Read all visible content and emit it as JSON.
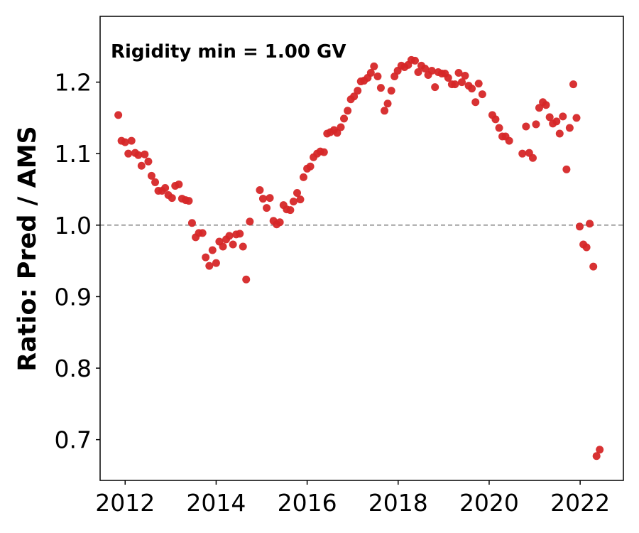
{
  "chart_data": {
    "type": "scatter",
    "title": "",
    "xlabel": "",
    "ylabel": "Ratio: Pred / AMS",
    "annotation": "Rigidity min = 1.00 GV",
    "xlim": [
      2011.45,
      2022.95
    ],
    "ylim": [
      0.643,
      1.292
    ],
    "xticks": [
      2012,
      2014,
      2016,
      2018,
      2020,
      2022
    ],
    "xtick_labels": [
      "2012",
      "2014",
      "2016",
      "2018",
      "2020",
      "2022"
    ],
    "yticks": [
      0.7,
      0.8,
      0.9,
      1.0,
      1.1,
      1.2
    ],
    "ytick_labels": [
      "0.7",
      "0.8",
      "0.9",
      "1.0",
      "1.1",
      "1.2"
    ],
    "reference_line": {
      "y": 1.0,
      "style": "dashed",
      "color": "#808080"
    },
    "grid": false,
    "marker_color": "#d62728",
    "points": [
      [
        2011.85,
        1.154
      ],
      [
        2011.92,
        1.118
      ],
      [
        2012.0,
        1.116
      ],
      [
        2012.07,
        1.1
      ],
      [
        2012.14,
        1.118
      ],
      [
        2012.22,
        1.101
      ],
      [
        2012.29,
        1.098
      ],
      [
        2012.36,
        1.083
      ],
      [
        2012.43,
        1.099
      ],
      [
        2012.51,
        1.089
      ],
      [
        2012.58,
        1.069
      ],
      [
        2012.66,
        1.06
      ],
      [
        2012.73,
        1.048
      ],
      [
        2012.81,
        1.048
      ],
      [
        2012.88,
        1.052
      ],
      [
        2012.95,
        1.042
      ],
      [
        2013.03,
        1.038
      ],
      [
        2013.1,
        1.055
      ],
      [
        2013.18,
        1.057
      ],
      [
        2013.25,
        1.037
      ],
      [
        2013.33,
        1.035
      ],
      [
        2013.4,
        1.034
      ],
      [
        2013.47,
        1.003
      ],
      [
        2013.55,
        0.983
      ],
      [
        2013.62,
        0.989
      ],
      [
        2013.7,
        0.989
      ],
      [
        2013.77,
        0.955
      ],
      [
        2013.85,
        0.943
      ],
      [
        2013.92,
        0.965
      ],
      [
        2014.0,
        0.947
      ],
      [
        2014.07,
        0.977
      ],
      [
        2014.15,
        0.97
      ],
      [
        2014.22,
        0.98
      ],
      [
        2014.29,
        0.985
      ],
      [
        2014.37,
        0.973
      ],
      [
        2014.44,
        0.987
      ],
      [
        2014.52,
        0.988
      ],
      [
        2014.59,
        0.97
      ],
      [
        2014.66,
        0.924
      ],
      [
        2014.74,
        1.005
      ],
      [
        2014.96,
        1.049
      ],
      [
        2015.03,
        1.037
      ],
      [
        2015.11,
        1.024
      ],
      [
        2015.18,
        1.038
      ],
      [
        2015.26,
        1.006
      ],
      [
        2015.33,
        1.001
      ],
      [
        2015.4,
        1.004
      ],
      [
        2015.48,
        1.028
      ],
      [
        2015.55,
        1.022
      ],
      [
        2015.63,
        1.021
      ],
      [
        2015.7,
        1.033
      ],
      [
        2015.78,
        1.045
      ],
      [
        2015.85,
        1.036
      ],
      [
        2015.92,
        1.067
      ],
      [
        2016.0,
        1.079
      ],
      [
        2016.07,
        1.082
      ],
      [
        2016.14,
        1.095
      ],
      [
        2016.22,
        1.1
      ],
      [
        2016.29,
        1.103
      ],
      [
        2016.37,
        1.102
      ],
      [
        2016.44,
        1.128
      ],
      [
        2016.51,
        1.13
      ],
      [
        2016.59,
        1.133
      ],
      [
        2016.66,
        1.129
      ],
      [
        2016.74,
        1.137
      ],
      [
        2016.81,
        1.149
      ],
      [
        2016.89,
        1.16
      ],
      [
        2016.96,
        1.176
      ],
      [
        2017.03,
        1.18
      ],
      [
        2017.11,
        1.188
      ],
      [
        2017.18,
        1.201
      ],
      [
        2017.25,
        1.202
      ],
      [
        2017.33,
        1.206
      ],
      [
        2017.4,
        1.213
      ],
      [
        2017.47,
        1.222
      ],
      [
        2017.55,
        1.208
      ],
      [
        2017.62,
        1.192
      ],
      [
        2017.7,
        1.16
      ],
      [
        2017.77,
        1.17
      ],
      [
        2017.85,
        1.188
      ],
      [
        2017.92,
        1.208
      ],
      [
        2017.99,
        1.216
      ],
      [
        2018.07,
        1.223
      ],
      [
        2018.14,
        1.221
      ],
      [
        2018.22,
        1.224
      ],
      [
        2018.29,
        1.231
      ],
      [
        2018.37,
        1.23
      ],
      [
        2018.44,
        1.214
      ],
      [
        2018.51,
        1.223
      ],
      [
        2018.59,
        1.219
      ],
      [
        2018.66,
        1.21
      ],
      [
        2018.74,
        1.216
      ],
      [
        2018.81,
        1.193
      ],
      [
        2018.88,
        1.214
      ],
      [
        2018.96,
        1.212
      ],
      [
        2019.03,
        1.212
      ],
      [
        2019.1,
        1.206
      ],
      [
        2019.18,
        1.197
      ],
      [
        2019.25,
        1.197
      ],
      [
        2019.33,
        1.213
      ],
      [
        2019.4,
        1.2
      ],
      [
        2019.47,
        1.209
      ],
      [
        2019.55,
        1.195
      ],
      [
        2019.62,
        1.191
      ],
      [
        2019.7,
        1.172
      ],
      [
        2019.77,
        1.198
      ],
      [
        2019.85,
        1.183
      ],
      [
        2020.07,
        1.154
      ],
      [
        2020.14,
        1.148
      ],
      [
        2020.22,
        1.136
      ],
      [
        2020.29,
        1.124
      ],
      [
        2020.36,
        1.124
      ],
      [
        2020.44,
        1.118
      ],
      [
        2020.73,
        1.1
      ],
      [
        2020.81,
        1.138
      ],
      [
        2020.88,
        1.101
      ],
      [
        2020.96,
        1.094
      ],
      [
        2021.03,
        1.141
      ],
      [
        2021.1,
        1.164
      ],
      [
        2021.18,
        1.172
      ],
      [
        2021.25,
        1.168
      ],
      [
        2021.33,
        1.151
      ],
      [
        2021.4,
        1.142
      ],
      [
        2021.48,
        1.145
      ],
      [
        2021.55,
        1.128
      ],
      [
        2021.62,
        1.152
      ],
      [
        2021.7,
        1.078
      ],
      [
        2021.77,
        1.136
      ],
      [
        2021.85,
        1.197
      ],
      [
        2021.92,
        1.15
      ],
      [
        2021.99,
        0.998
      ],
      [
        2022.07,
        0.973
      ],
      [
        2022.14,
        0.969
      ],
      [
        2022.21,
        1.002
      ],
      [
        2022.29,
        0.942
      ],
      [
        2022.36,
        0.677
      ],
      [
        2022.43,
        0.686
      ]
    ]
  }
}
